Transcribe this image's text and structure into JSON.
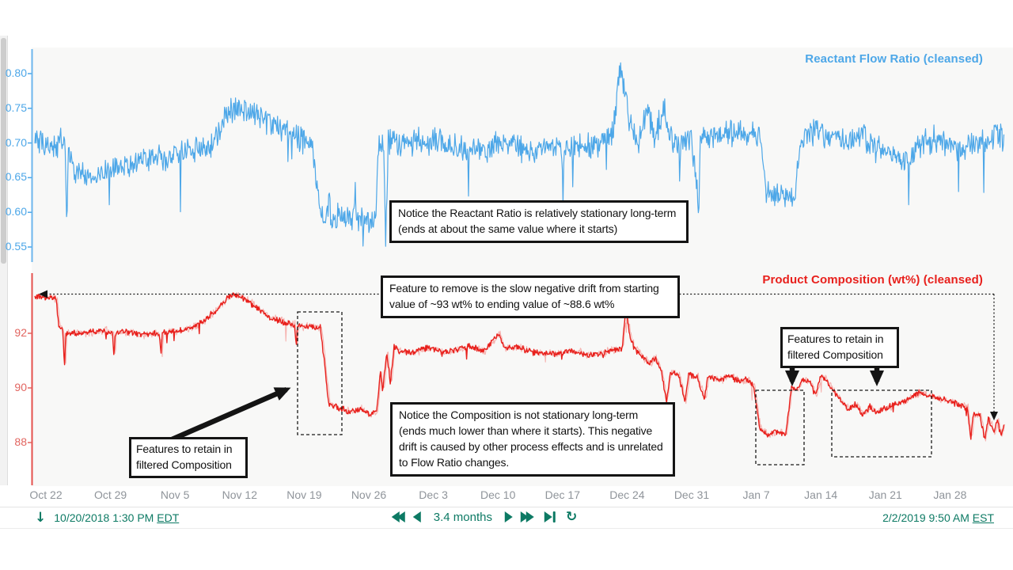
{
  "colors": {
    "blue": "#4da7e8",
    "blue_axis": "#6db6ec",
    "red": "#e8201c",
    "red_light": "#f6b3b0",
    "red_axis": "#e4504c",
    "red_label": "#e26560",
    "teal": "#0d7a64",
    "gray_label": "#8f949a",
    "annotation_black": "#141414",
    "chart_bg": "#f8f8f7"
  },
  "top_chart": {
    "title": "Reactant Flow Ratio (cleansed)",
    "y_ticks": [
      "0.80",
      "0.75",
      "0.70",
      "0.65",
      "0.60",
      "0.55"
    ]
  },
  "bottom_chart": {
    "title": "Product Composition (wt%) (cleansed)",
    "y_ticks": [
      "92",
      "90",
      "88"
    ]
  },
  "x_axis": {
    "labels": [
      "Oct 22",
      "Oct 29",
      "Nov 5",
      "Nov 12",
      "Nov 19",
      "Nov 26",
      "Dec 3",
      "Dec 10",
      "Dec 17",
      "Dec 24",
      "Dec 31",
      "Jan 7",
      "Jan 14",
      "Jan 21",
      "Jan 28"
    ]
  },
  "annotations": {
    "reactant_note": "Notice the Reactant Ratio is relatively stationary long-term (ends at about the same value where it starts)",
    "drift_note": "Feature to remove is the slow negative drift from starting value of ~93 wt% to ending value of ~88.6 wt%",
    "composition_note": "Notice the Composition is not stationary long-term (ends much lower than where it starts). This negative drift is caused by other process effects and is unrelated to Flow Ratio changes.",
    "retain_left": "Features to retain in filtered Composition",
    "retain_right": "Features to retain in filtered Composition"
  },
  "toolbar": {
    "start_date": "10/20/2018 1:30 PM",
    "start_tz": "EDT",
    "duration": "3.4 months",
    "end_date": "2/2/2019 9:50 AM",
    "end_tz": "EST",
    "icon_names": [
      "down-arrow-icon",
      "fast-backward-icon",
      "step-backward-icon",
      "step-forward-icon",
      "fast-forward-icon",
      "skip-to-end-icon",
      "refresh-icon"
    ]
  },
  "chart_data": [
    {
      "type": "line",
      "name": "Reactant Flow Ratio (cleansed)",
      "color": "#4da7e8",
      "x_unit": "days since 2018-10-20 13:30 EDT",
      "x_range": [
        0,
        104.8
      ],
      "ylim": [
        0.545,
        0.825
      ],
      "y_ticks": [
        0.8,
        0.75,
        0.7,
        0.65,
        0.6,
        0.55
      ],
      "grid": false,
      "legend_position": "top-right",
      "noise": 0.016,
      "control_points": [
        [
          0,
          0.701
        ],
        [
          1.5,
          0.698
        ],
        [
          3.3,
          0.703
        ],
        [
          3.45,
          0.585
        ],
        [
          3.6,
          0.688
        ],
        [
          4.3,
          0.66
        ],
        [
          6,
          0.656
        ],
        [
          8,
          0.662
        ],
        [
          10,
          0.668
        ],
        [
          12,
          0.68
        ],
        [
          14,
          0.678
        ],
        [
          16,
          0.686
        ],
        [
          18,
          0.69
        ],
        [
          19.5,
          0.7
        ],
        [
          20.6,
          0.74
        ],
        [
          22,
          0.748
        ],
        [
          23.5,
          0.742
        ],
        [
          24.5,
          0.737
        ],
        [
          26,
          0.726
        ],
        [
          27.5,
          0.718
        ],
        [
          29.2,
          0.705
        ],
        [
          29.9,
          0.7
        ],
        [
          30.9,
          0.597
        ],
        [
          31.7,
          0.592
        ],
        [
          31.82,
          0.652
        ],
        [
          31.95,
          0.59
        ],
        [
          33.2,
          0.592
        ],
        [
          34.5,
          0.591
        ],
        [
          34.62,
          0.643
        ],
        [
          34.75,
          0.589
        ],
        [
          36.3,
          0.588
        ],
        [
          36.9,
          0.592
        ],
        [
          37.15,
          0.7
        ],
        [
          37.7,
          0.706
        ],
        [
          37.95,
          0.565
        ],
        [
          38.2,
          0.698
        ],
        [
          40,
          0.7
        ],
        [
          42,
          0.706
        ],
        [
          44,
          0.7
        ],
        [
          46,
          0.695
        ],
        [
          48,
          0.684
        ],
        [
          50,
          0.7
        ],
        [
          52,
          0.694
        ],
        [
          54,
          0.69
        ],
        [
          56,
          0.698
        ],
        [
          57.0,
          0.692
        ],
        [
          57.12,
          0.617
        ],
        [
          57.25,
          0.69
        ],
        [
          58.5,
          0.7
        ],
        [
          60,
          0.692
        ],
        [
          61.5,
          0.705
        ],
        [
          62.6,
          0.718
        ],
        [
          63.3,
          0.812
        ],
        [
          63.8,
          0.772
        ],
        [
          64.3,
          0.728
        ],
        [
          65.2,
          0.7
        ],
        [
          66.3,
          0.752
        ],
        [
          67.0,
          0.705
        ],
        [
          68.0,
          0.748
        ],
        [
          68.8,
          0.705
        ],
        [
          69.6,
          0.7
        ],
        [
          69.72,
          0.638
        ],
        [
          69.85,
          0.7
        ],
        [
          71,
          0.706
        ],
        [
          71.8,
          0.6
        ],
        [
          71.95,
          0.703
        ],
        [
          73.5,
          0.71
        ],
        [
          75.5,
          0.716
        ],
        [
          77.5,
          0.712
        ],
        [
          78.6,
          0.7
        ],
        [
          79.0,
          0.63
        ],
        [
          80.2,
          0.62
        ],
        [
          82.2,
          0.628
        ],
        [
          82.8,
          0.7
        ],
        [
          84,
          0.714
        ],
        [
          86,
          0.712
        ],
        [
          88,
          0.7
        ],
        [
          89.5,
          0.715
        ],
        [
          91,
          0.692
        ],
        [
          93,
          0.68
        ],
        [
          94.5,
          0.678
        ],
        [
          96,
          0.7
        ],
        [
          97.5,
          0.706
        ],
        [
          99,
          0.692
        ],
        [
          100.5,
          0.694
        ],
        [
          102,
          0.703
        ],
        [
          103.5,
          0.712
        ],
        [
          104.8,
          0.706
        ]
      ]
    },
    {
      "type": "line",
      "name": "Product Composition (wt%) (cleansed)",
      "color": "#e8201c",
      "x_unit": "days since 2018-10-20 13:30 EDT",
      "x_range": [
        0,
        104.8
      ],
      "ylim": [
        86.5,
        93.8
      ],
      "y_ticks": [
        92,
        90,
        88
      ],
      "grid": false,
      "legend_position": "top-right",
      "noise": 0.09,
      "start_value_note": "~93 wt%",
      "end_value_note": "~88.6 wt%",
      "control_points": [
        [
          0,
          93.35
        ],
        [
          2.3,
          93.28
        ],
        [
          2.6,
          92.25
        ],
        [
          3.05,
          92.1
        ],
        [
          3.2,
          90.7
        ],
        [
          3.35,
          92.0
        ],
        [
          4.5,
          92.0
        ],
        [
          6,
          92.05
        ],
        [
          7.5,
          92.1
        ],
        [
          8.4,
          92.0
        ],
        [
          8.55,
          91.15
        ],
        [
          8.7,
          92.0
        ],
        [
          10,
          92.05
        ],
        [
          11.5,
          91.95
        ],
        [
          13.0,
          92.0
        ],
        [
          13.5,
          91.9
        ],
        [
          13.65,
          91.2
        ],
        [
          13.8,
          92.0
        ],
        [
          15,
          92.05
        ],
        [
          16.5,
          92.15
        ],
        [
          18,
          92.4
        ],
        [
          19.5,
          92.8
        ],
        [
          20.8,
          93.3
        ],
        [
          21.5,
          93.45
        ],
        [
          22.5,
          93.3
        ],
        [
          23.5,
          93.05
        ],
        [
          24.5,
          92.8
        ],
        [
          25.5,
          92.55
        ],
        [
          26.5,
          92.45
        ],
        [
          27.5,
          92.35
        ],
        [
          28.1,
          92.3
        ],
        [
          28.25,
          91.5
        ],
        [
          28.4,
          92.28
        ],
        [
          29.5,
          92.25
        ],
        [
          30.9,
          92.2
        ],
        [
          31.8,
          89.4
        ],
        [
          33,
          89.25
        ],
        [
          34.2,
          89.1
        ],
        [
          35.2,
          89.25
        ],
        [
          36.2,
          89.05
        ],
        [
          37.0,
          89.15
        ],
        [
          37.35,
          90.6
        ],
        [
          37.6,
          89.9
        ],
        [
          38.05,
          91.35
        ],
        [
          38.45,
          90.2
        ],
        [
          38.85,
          91.5
        ],
        [
          39.4,
          91.35
        ],
        [
          41,
          91.3
        ],
        [
          42.5,
          91.5
        ],
        [
          44,
          91.3
        ],
        [
          45.5,
          91.4
        ],
        [
          47,
          91.5
        ],
        [
          48.5,
          91.35
        ],
        [
          50.2,
          92.0
        ],
        [
          50.7,
          91.45
        ],
        [
          52,
          91.5
        ],
        [
          54,
          91.3
        ],
        [
          56,
          91.25
        ],
        [
          58,
          91.35
        ],
        [
          60,
          91.2
        ],
        [
          61.5,
          91.3
        ],
        [
          63.5,
          91.45
        ],
        [
          63.9,
          92.85
        ],
        [
          64.35,
          91.9
        ],
        [
          64.8,
          91.45
        ],
        [
          65.6,
          91.15
        ],
        [
          66.4,
          90.9
        ],
        [
          67.1,
          91.1
        ],
        [
          67.8,
          90.55
        ],
        [
          68.3,
          89.45
        ],
        [
          68.7,
          90.55
        ],
        [
          69.6,
          90.5
        ],
        [
          70.3,
          89.5
        ],
        [
          70.7,
          90.5
        ],
        [
          71.6,
          90.4
        ],
        [
          72.4,
          89.6
        ],
        [
          72.8,
          90.4
        ],
        [
          74,
          90.3
        ],
        [
          75.2,
          90.45
        ],
        [
          76,
          90.25
        ],
        [
          77,
          90.3
        ],
        [
          77.7,
          90.1
        ],
        [
          78.4,
          88.5
        ],
        [
          79.3,
          88.3
        ],
        [
          80.3,
          88.4
        ],
        [
          81.2,
          88.3
        ],
        [
          81.8,
          90.0
        ],
        [
          82.4,
          89.9
        ],
        [
          83.0,
          90.35
        ],
        [
          83.8,
          90.25
        ],
        [
          84.4,
          89.7
        ],
        [
          85.0,
          90.45
        ],
        [
          85.8,
          90.2
        ],
        [
          86.5,
          89.8
        ],
        [
          87.3,
          89.5
        ],
        [
          88,
          89.2
        ],
        [
          88.8,
          89.4
        ],
        [
          89.5,
          89.0
        ],
        [
          90.3,
          89.3
        ],
        [
          91,
          89.1
        ],
        [
          92,
          89.25
        ],
        [
          93,
          89.4
        ],
        [
          94,
          89.5
        ],
        [
          95,
          89.7
        ],
        [
          95.8,
          89.85
        ],
        [
          96.6,
          89.7
        ],
        [
          97.5,
          89.65
        ],
        [
          98.5,
          89.55
        ],
        [
          99.3,
          89.45
        ],
        [
          100.1,
          89.35
        ],
        [
          100.8,
          89.3
        ],
        [
          101.2,
          88.15
        ],
        [
          101.5,
          89.05
        ],
        [
          102.2,
          89.0
        ],
        [
          102.7,
          88.1
        ],
        [
          103.1,
          88.9
        ],
        [
          103.7,
          88.35
        ],
        [
          104.1,
          88.85
        ],
        [
          104.45,
          88.25
        ],
        [
          104.8,
          88.65
        ]
      ]
    }
  ]
}
